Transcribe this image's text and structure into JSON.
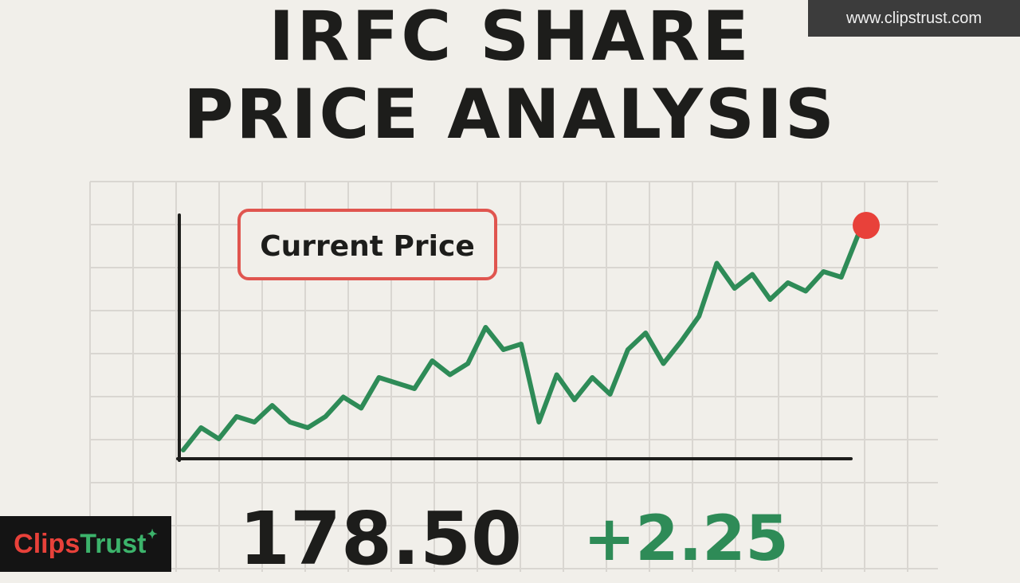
{
  "header": {
    "title_line1": "IRFC SHARE",
    "title_line2": "PRICE ANALYSIS",
    "watermark": "www.clipstrust.com"
  },
  "logo": {
    "part1": "Clips",
    "part2": "Trust"
  },
  "stats": {
    "price": "178.50",
    "change": "+2.25"
  },
  "colors": {
    "line": "#2e8b57",
    "marker": "#e8413a",
    "callout_border": "#e0554f",
    "grid": "#d9d6d1",
    "axis": "#1d1d1b"
  },
  "chart_data": {
    "type": "line",
    "annotation": "Current Price",
    "grid": true,
    "series": [
      {
        "values": [
          100,
          108,
          104,
          112,
          110,
          116,
          110,
          108,
          112,
          119,
          115,
          126,
          124,
          122,
          132,
          127,
          131,
          144,
          136,
          138,
          110,
          127,
          118,
          126,
          120,
          136,
          142,
          131,
          139,
          148,
          167,
          158,
          163,
          154,
          160,
          157,
          164,
          162,
          178
        ]
      }
    ]
  }
}
